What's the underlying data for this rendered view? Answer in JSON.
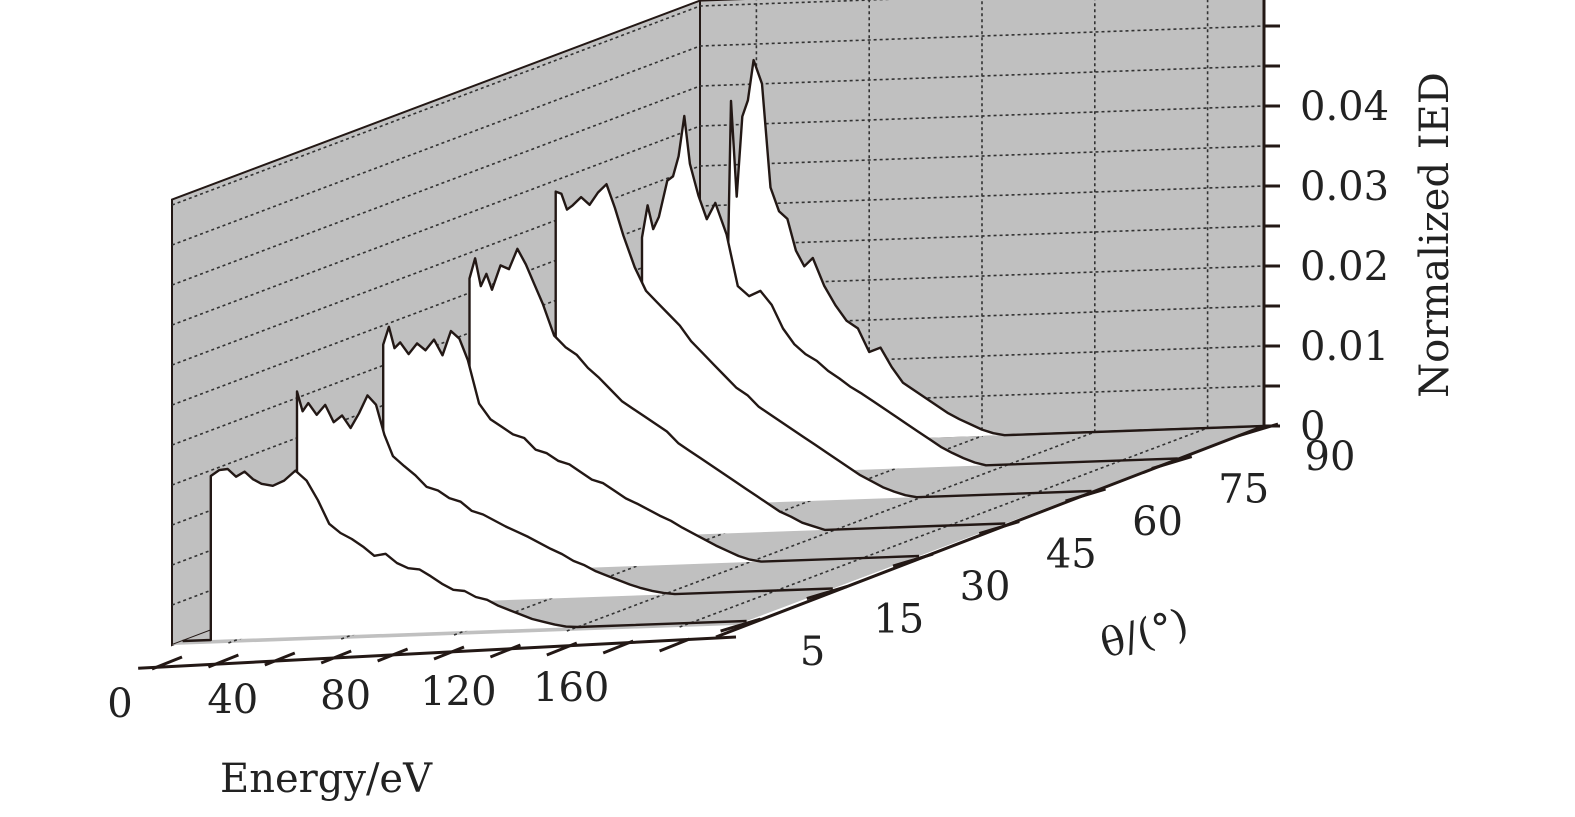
{
  "chart_data": {
    "type": "waterfall-3d-line",
    "title": "",
    "xlabel": "Energy/eV",
    "ylabel": "θ/(°)",
    "zlabel": "Normalized IED",
    "x_ticks": [
      "0",
      "40",
      "80",
      "120",
      "160"
    ],
    "y_ticks": [
      "5",
      "15",
      "30",
      "45",
      "60",
      "75",
      "90"
    ],
    "z_ticks": [
      "0",
      "0.01",
      "0.02",
      "0.03",
      "0.04"
    ],
    "xlim": [
      0,
      200
    ],
    "zlim": [
      0,
      0.048
    ],
    "colors": {
      "wall": "#c0c0c0",
      "curve_fill": "#ffffff",
      "line": "#231815"
    },
    "series": [
      {
        "name": "5",
        "points": [
          [
            0,
            0
          ],
          [
            10,
            0
          ],
          [
            10,
            0.0205
          ],
          [
            13,
            0.0212
          ],
          [
            16,
            0.0213
          ],
          [
            19,
            0.0203
          ],
          [
            22,
            0.0209
          ],
          [
            25,
            0.0199
          ],
          [
            28,
            0.0193
          ],
          [
            32,
            0.019
          ],
          [
            36,
            0.0196
          ],
          [
            40,
            0.0208
          ],
          [
            44,
            0.0195
          ],
          [
            48,
            0.017
          ],
          [
            52,
            0.014
          ],
          [
            56,
            0.0128
          ],
          [
            60,
            0.012
          ],
          [
            64,
            0.011
          ],
          [
            68,
            0.0098
          ],
          [
            72,
            0.01
          ],
          [
            76,
            0.0088
          ],
          [
            80,
            0.0081
          ],
          [
            84,
            0.0079
          ],
          [
            88,
            0.007
          ],
          [
            92,
            0.006
          ],
          [
            96,
            0.0052
          ],
          [
            100,
            0.005
          ],
          [
            104,
            0.0042
          ],
          [
            108,
            0.0038
          ],
          [
            112,
            0.003
          ],
          [
            116,
            0.0024
          ],
          [
            120,
            0.0018
          ],
          [
            124,
            0.0012
          ],
          [
            128,
            0.0008
          ],
          [
            132,
            0.0004
          ],
          [
            136,
            0.0001
          ],
          [
            140,
            0
          ],
          [
            200,
            0
          ]
        ]
      },
      {
        "name": "15",
        "points": [
          [
            0,
            0
          ],
          [
            10,
            0
          ],
          [
            10,
            0.027
          ],
          [
            12,
            0.0245
          ],
          [
            14,
            0.0255
          ],
          [
            17,
            0.024
          ],
          [
            20,
            0.0252
          ],
          [
            23,
            0.023
          ],
          [
            26,
            0.0238
          ],
          [
            29,
            0.0222
          ],
          [
            32,
            0.024
          ],
          [
            35,
            0.0262
          ],
          [
            38,
            0.025
          ],
          [
            41,
            0.0212
          ],
          [
            44,
            0.0185
          ],
          [
            48,
            0.0172
          ],
          [
            52,
            0.016
          ],
          [
            56,
            0.0145
          ],
          [
            60,
            0.014
          ],
          [
            64,
            0.013
          ],
          [
            68,
            0.0125
          ],
          [
            72,
            0.0113
          ],
          [
            76,
            0.0108
          ],
          [
            80,
            0.01
          ],
          [
            84,
            0.0092
          ],
          [
            88,
            0.0085
          ],
          [
            92,
            0.0078
          ],
          [
            96,
            0.007
          ],
          [
            100,
            0.0062
          ],
          [
            104,
            0.0055
          ],
          [
            108,
            0.0046
          ],
          [
            112,
            0.004
          ],
          [
            116,
            0.0032
          ],
          [
            120,
            0.0026
          ],
          [
            124,
            0.002
          ],
          [
            128,
            0.0014
          ],
          [
            132,
            0.0009
          ],
          [
            136,
            0.0005
          ],
          [
            140,
            0.0002
          ],
          [
            144,
            0
          ],
          [
            200,
            0
          ]
        ]
      },
      {
        "name": "30",
        "points": [
          [
            0,
            0
          ],
          [
            10,
            0
          ],
          [
            10,
            0.0288
          ],
          [
            12,
            0.031
          ],
          [
            14,
            0.0283
          ],
          [
            16,
            0.029
          ],
          [
            19,
            0.0275
          ],
          [
            22,
            0.0288
          ],
          [
            25,
            0.0279
          ],
          [
            28,
            0.0292
          ],
          [
            31,
            0.0272
          ],
          [
            34,
            0.0302
          ],
          [
            37,
            0.0292
          ],
          [
            40,
            0.0265
          ],
          [
            44,
            0.021
          ],
          [
            48,
            0.019
          ],
          [
            52,
            0.018
          ],
          [
            56,
            0.017
          ],
          [
            60,
            0.0165
          ],
          [
            64,
            0.015
          ],
          [
            68,
            0.0145
          ],
          [
            72,
            0.0135
          ],
          [
            76,
            0.013
          ],
          [
            80,
            0.012
          ],
          [
            84,
            0.011
          ],
          [
            88,
            0.0105
          ],
          [
            92,
            0.0095
          ],
          [
            96,
            0.0085
          ],
          [
            100,
            0.0078
          ],
          [
            104,
            0.007
          ],
          [
            108,
            0.0062
          ],
          [
            112,
            0.0055
          ],
          [
            116,
            0.0046
          ],
          [
            120,
            0.0038
          ],
          [
            124,
            0.003
          ],
          [
            128,
            0.0022
          ],
          [
            132,
            0.0015
          ],
          [
            136,
            0.0008
          ],
          [
            140,
            0.0003
          ],
          [
            144,
            0
          ],
          [
            200,
            0
          ]
        ]
      },
      {
        "name": "45",
        "points": [
          [
            0,
            0
          ],
          [
            10,
            0
          ],
          [
            10,
            0.033
          ],
          [
            12,
            0.0355
          ],
          [
            14,
            0.032
          ],
          [
            16,
            0.0335
          ],
          [
            18,
            0.0315
          ],
          [
            21,
            0.0345
          ],
          [
            24,
            0.034
          ],
          [
            27,
            0.0365
          ],
          [
            30,
            0.0345
          ],
          [
            33,
            0.032
          ],
          [
            36,
            0.0295
          ],
          [
            40,
            0.0255
          ],
          [
            44,
            0.024
          ],
          [
            48,
            0.023
          ],
          [
            52,
            0.0213
          ],
          [
            56,
            0.02
          ],
          [
            60,
            0.0185
          ],
          [
            64,
            0.017
          ],
          [
            68,
            0.016
          ],
          [
            72,
            0.015
          ],
          [
            76,
            0.014
          ],
          [
            80,
            0.013
          ],
          [
            84,
            0.0115
          ],
          [
            88,
            0.0105
          ],
          [
            92,
            0.0095
          ],
          [
            96,
            0.0085
          ],
          [
            100,
            0.0075
          ],
          [
            104,
            0.0065
          ],
          [
            108,
            0.0055
          ],
          [
            112,
            0.0045
          ],
          [
            116,
            0.0035
          ],
          [
            120,
            0.0025
          ],
          [
            124,
            0.0018
          ],
          [
            128,
            0.001
          ],
          [
            132,
            0.0005
          ],
          [
            136,
            0
          ],
          [
            200,
            0
          ]
        ]
      },
      {
        "name": "60",
        "points": [
          [
            0,
            0
          ],
          [
            10,
            0
          ],
          [
            10,
            0.0398
          ],
          [
            12,
            0.0395
          ],
          [
            14,
            0.0375
          ],
          [
            16,
            0.038
          ],
          [
            19,
            0.039
          ],
          [
            22,
            0.038
          ],
          [
            25,
            0.0395
          ],
          [
            28,
            0.0405
          ],
          [
            31,
            0.0375
          ],
          [
            34,
            0.034
          ],
          [
            38,
            0.03
          ],
          [
            42,
            0.027
          ],
          [
            46,
            0.0255
          ],
          [
            50,
            0.024
          ],
          [
            54,
            0.0225
          ],
          [
            58,
            0.0205
          ],
          [
            62,
            0.019
          ],
          [
            66,
            0.0175
          ],
          [
            70,
            0.016
          ],
          [
            74,
            0.0145
          ],
          [
            78,
            0.0135
          ],
          [
            82,
            0.012
          ],
          [
            86,
            0.011
          ],
          [
            90,
            0.01
          ],
          [
            94,
            0.009
          ],
          [
            98,
            0.008
          ],
          [
            102,
            0.007
          ],
          [
            106,
            0.006
          ],
          [
            110,
            0.005
          ],
          [
            114,
            0.004
          ],
          [
            118,
            0.003
          ],
          [
            122,
            0.0022
          ],
          [
            126,
            0.0014
          ],
          [
            130,
            0.0008
          ],
          [
            134,
            0.0003
          ],
          [
            138,
            0
          ],
          [
            200,
            0
          ]
        ]
      },
      {
        "name": "75",
        "points": [
          [
            0,
            0
          ],
          [
            10,
            0
          ],
          [
            10,
            0.03
          ],
          [
            12,
            0.034
          ],
          [
            14,
            0.031
          ],
          [
            16,
            0.0325
          ],
          [
            19,
            0.037
          ],
          [
            21,
            0.0375
          ],
          [
            23,
            0.04
          ],
          [
            25,
            0.045
          ],
          [
            27,
            0.039
          ],
          [
            30,
            0.035
          ],
          [
            33,
            0.032
          ],
          [
            36,
            0.034
          ],
          [
            40,
            0.03
          ],
          [
            44,
            0.0235
          ],
          [
            48,
            0.0222
          ],
          [
            52,
            0.0228
          ],
          [
            56,
            0.021
          ],
          [
            60,
            0.018
          ],
          [
            64,
            0.016
          ],
          [
            68,
            0.0147
          ],
          [
            72,
            0.0138
          ],
          [
            76,
            0.0125
          ],
          [
            80,
            0.0115
          ],
          [
            84,
            0.0104
          ],
          [
            88,
            0.0095
          ],
          [
            92,
            0.0085
          ],
          [
            96,
            0.0075
          ],
          [
            100,
            0.0065
          ],
          [
            104,
            0.0055
          ],
          [
            108,
            0.0045
          ],
          [
            112,
            0.0035
          ],
          [
            116,
            0.0025
          ],
          [
            120,
            0.0017
          ],
          [
            124,
            0.001
          ],
          [
            128,
            0.0004
          ],
          [
            132,
            0
          ],
          [
            200,
            0
          ]
        ]
      },
      {
        "name": "90",
        "points": [
          [
            0,
            0
          ],
          [
            10,
            0
          ],
          [
            10,
            0.025
          ],
          [
            11,
            0.043
          ],
          [
            13,
            0.031
          ],
          [
            15,
            0.041
          ],
          [
            17,
            0.043
          ],
          [
            19,
            0.048
          ],
          [
            22,
            0.045
          ],
          [
            25,
            0.032
          ],
          [
            28,
            0.029
          ],
          [
            31,
            0.028
          ],
          [
            34,
            0.024
          ],
          [
            37,
            0.022
          ],
          [
            40,
            0.023
          ],
          [
            44,
            0.0195
          ],
          [
            48,
            0.017
          ],
          [
            52,
            0.015
          ],
          [
            56,
            0.014
          ],
          [
            60,
            0.011
          ],
          [
            64,
            0.0115
          ],
          [
            68,
            0.009
          ],
          [
            72,
            0.007
          ],
          [
            76,
            0.006
          ],
          [
            80,
            0.005
          ],
          [
            84,
            0.004
          ],
          [
            88,
            0.003
          ],
          [
            92,
            0.0022
          ],
          [
            96,
            0.0015
          ],
          [
            100,
            0.0008
          ],
          [
            104,
            0.0003
          ],
          [
            108,
            0
          ],
          [
            200,
            0
          ]
        ]
      }
    ]
  }
}
